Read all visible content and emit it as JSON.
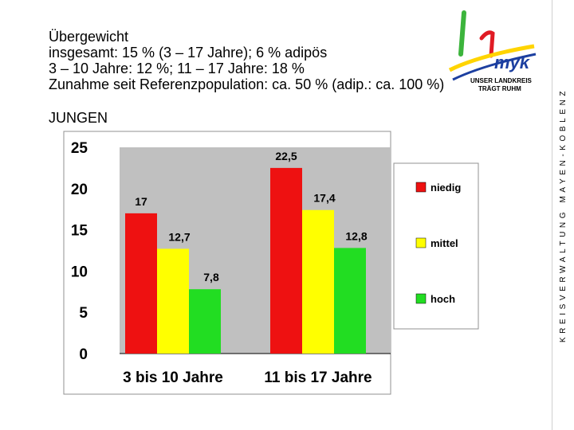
{
  "header": {
    "lines": [
      "Übergewicht",
      "insgesamt: 15 % (3 – 17 Jahre); 6 % adipös",
      "3 – 10 Jahre: 12 %; 11 – 17 Jahre: 18 %",
      "Zunahme seit Referenzpopulation: ca. 50 % (adip.: ca. 100 %)"
    ],
    "subtitle": "JUNGEN"
  },
  "sidebar": {
    "text": "KREISVERWALTUNG MAYEN-KOBLENZ"
  },
  "logo": {
    "word": "myk",
    "line1": "UNSER LANDKREIS",
    "line2": "TRÄGT RUHM"
  },
  "colors": {
    "niedig": "#ee1111",
    "mittel": "#ffff00",
    "hoch": "#22dd22",
    "plot_bg": "#c0c0c0"
  },
  "chart_data": {
    "type": "bar",
    "categories": [
      "3 bis 10 Jahre",
      "11 bis 17 Jahre"
    ],
    "series": [
      {
        "name": "niedig",
        "values": [
          17,
          22.5
        ],
        "labels": [
          "17",
          "22,5"
        ]
      },
      {
        "name": "mittel",
        "values": [
          12.7,
          17.4
        ],
        "labels": [
          "12,7",
          "17,4"
        ]
      },
      {
        "name": "hoch",
        "values": [
          7.8,
          12.8
        ],
        "labels": [
          "7,8",
          "12,8"
        ]
      }
    ],
    "yticks": [
      "0",
      "5",
      "10",
      "15",
      "20",
      "25"
    ],
    "ylim": [
      0,
      25
    ],
    "legend_position": "right",
    "grid": false
  }
}
